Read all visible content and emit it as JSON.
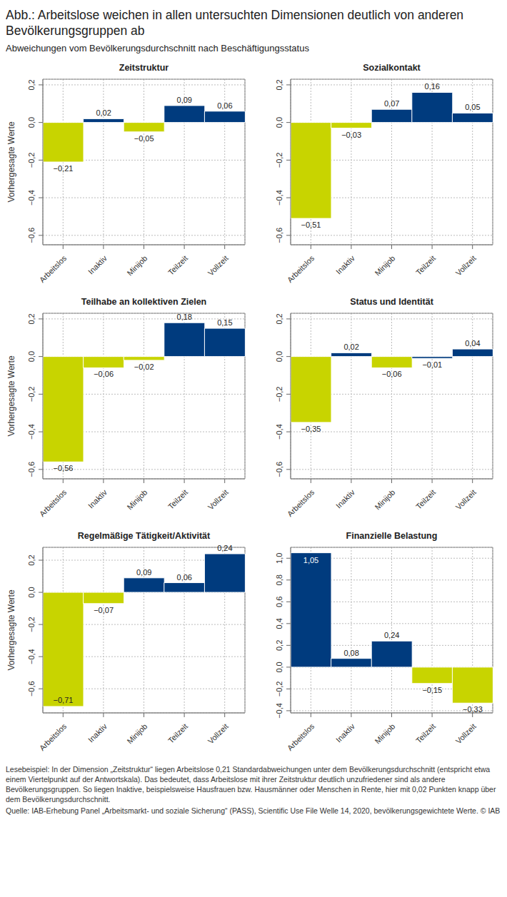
{
  "title": "Abb.: Arbeitslose weichen in allen untersuchten Dimensionen deutlich von anderen Bevölkerungsgruppen ab",
  "subtitle": "Abweichungen vom Bevölkerungsdurchschnitt nach Beschäftigungsstatus",
  "footnote": "Lesebeispiel: In der Dimension „Zeitstruktur“ liegen Arbeitslose 0,21 Standardabweichungen unter dem Bevölkerungsdurchschnitt (entspricht etwa einem Viertelpunkt auf der Antwortskala). Das bedeutet, dass Arbeitslose mit ihrer Zeitstruktur deutlich unzufriedener sind als andere Bevölkerungsgruppen. So liegen Inaktive, beispielsweise Hausfrauen bzw. Hausmänner oder Menschen in Rente, hier mit 0,02 Punkten knapp über dem Bevölkerungsdurchschnitt.",
  "source": "Quelle: IAB-Erhebung Panel „Arbeitsmarkt- und soziale Sicherung“ (PASS), Scientific Use File Welle 14, 2020, bevölkerungsgewichtete Werte. © IAB",
  "chart_data": [
    {
      "type": "bar",
      "title": "Zeitstruktur",
      "ylabel": "Vorhergesagte Werte",
      "categories": [
        "Arbeitslos",
        "Inaktiv",
        "Minijob",
        "Teilzeit",
        "Vollzeit"
      ],
      "values": [
        -0.21,
        0.02,
        -0.05,
        0.09,
        0.06
      ],
      "value_labels": [
        "−0,21",
        "0,02",
        "−0,05",
        "0,09",
        "0,06"
      ],
      "colors": [
        "#c8d400",
        "#003b7e",
        "#c8d400",
        "#003b7e",
        "#003b7e"
      ],
      "ylim": [
        -0.65,
        0.23
      ],
      "yticks": [
        {
          "value": -0.6,
          "label": "−0,6"
        },
        {
          "value": -0.4,
          "label": "−0,4"
        },
        {
          "value": -0.2,
          "label": "−0,2"
        },
        {
          "value": 0,
          "label": "0,0"
        },
        {
          "value": 0.2,
          "label": "0,2"
        }
      ],
      "grid": true,
      "data_labels": true
    },
    {
      "type": "bar",
      "title": "Sozialkontakt",
      "categories": [
        "Arbeitslos",
        "Inaktiv",
        "Minijob",
        "Teilzeit",
        "Vollzeit"
      ],
      "values": [
        -0.51,
        -0.03,
        0.07,
        0.16,
        0.05
      ],
      "value_labels": [
        "−0,51",
        "−0,03",
        "0,07",
        "0,16",
        "0,05"
      ],
      "colors": [
        "#c8d400",
        "#c8d400",
        "#003b7e",
        "#003b7e",
        "#003b7e"
      ],
      "ylim": [
        -0.65,
        0.23
      ],
      "yticks": [
        {
          "value": -0.6,
          "label": "−0,6"
        },
        {
          "value": -0.4,
          "label": "−0,4"
        },
        {
          "value": -0.2,
          "label": "−0,2"
        },
        {
          "value": 0,
          "label": "0,0"
        },
        {
          "value": 0.2,
          "label": "0,2"
        }
      ],
      "grid": true,
      "data_labels": true
    },
    {
      "type": "bar",
      "title": "Teilhabe an kollektiven Zielen",
      "ylabel": "Vorhergesagte Werte",
      "categories": [
        "Arbeitslos",
        "Inaktiv",
        "Minijob",
        "Teilzeit",
        "Vollzeit"
      ],
      "values": [
        -0.56,
        -0.06,
        -0.02,
        0.18,
        0.15
      ],
      "value_labels": [
        "−0,56",
        "−0,06",
        "−0,02",
        "0,18",
        "0,15"
      ],
      "colors": [
        "#c8d400",
        "#c8d400",
        "#c8d400",
        "#003b7e",
        "#003b7e"
      ],
      "ylim": [
        -0.65,
        0.23
      ],
      "yticks": [
        {
          "value": -0.6,
          "label": "−0,6"
        },
        {
          "value": -0.4,
          "label": "−0,4"
        },
        {
          "value": -0.2,
          "label": "−0,2"
        },
        {
          "value": 0,
          "label": "0,0"
        },
        {
          "value": 0.2,
          "label": "0,2"
        }
      ],
      "grid": true,
      "data_labels": true
    },
    {
      "type": "bar",
      "title": "Status und Identität",
      "categories": [
        "Arbeitslos",
        "Inaktiv",
        "Minijob",
        "Teilzeit",
        "Vollzeit"
      ],
      "values": [
        -0.35,
        0.02,
        -0.06,
        -0.01,
        0.04
      ],
      "value_labels": [
        "−0,35",
        "0,02",
        "−0,06",
        "−0,01",
        "0,04"
      ],
      "colors": [
        "#c8d400",
        "#003b7e",
        "#c8d400",
        "#003b7e",
        "#003b7e"
      ],
      "ylim": [
        -0.65,
        0.23
      ],
      "yticks": [
        {
          "value": -0.6,
          "label": "−0,6"
        },
        {
          "value": -0.4,
          "label": "−0,4"
        },
        {
          "value": -0.2,
          "label": "−0,2"
        },
        {
          "value": 0,
          "label": "0,0"
        },
        {
          "value": 0.2,
          "label": "0,2"
        }
      ],
      "grid": true,
      "data_labels": true
    },
    {
      "type": "bar",
      "title": "Regelmäßige Tätigkeit/Aktivität",
      "ylabel": "Vorhergesagte Werte",
      "categories": [
        "Arbeitslos",
        "Inaktiv",
        "Minijob",
        "Teilzeit",
        "Vollzeit"
      ],
      "values": [
        -0.71,
        -0.07,
        0.09,
        0.06,
        0.24
      ],
      "value_labels": [
        "−0,71",
        "−0,07",
        "0,09",
        "0,06",
        "0,24"
      ],
      "colors": [
        "#c8d400",
        "#c8d400",
        "#003b7e",
        "#003b7e",
        "#003b7e"
      ],
      "ylim": [
        -0.75,
        0.28
      ],
      "yticks": [
        {
          "value": -0.6,
          "label": "−0,6"
        },
        {
          "value": -0.4,
          "label": "−0,4"
        },
        {
          "value": -0.2,
          "label": "−0,2"
        },
        {
          "value": 0,
          "label": "0,0"
        },
        {
          "value": 0.2,
          "label": "0,2"
        }
      ],
      "grid": true,
      "data_labels": true
    },
    {
      "type": "bar",
      "title": "Finanzielle Belastung",
      "categories": [
        "Arbeitslos",
        "Inaktiv",
        "Minijob",
        "Teilzeit",
        "Vollzeit"
      ],
      "values": [
        1.05,
        0.08,
        0.24,
        -0.15,
        -0.33
      ],
      "value_labels": [
        "1,05",
        "0,08",
        "0,24",
        "−0,15",
        "−0,33"
      ],
      "colors": [
        "#003b7e",
        "#003b7e",
        "#003b7e",
        "#c8d400",
        "#c8d400"
      ],
      "ylim": [
        -0.42,
        1.1
      ],
      "yticks": [
        {
          "value": -0.4,
          "label": "−0,4"
        },
        {
          "value": -0.2,
          "label": "−0,2"
        },
        {
          "value": 0,
          "label": "0,0"
        },
        {
          "value": 0.2,
          "label": "0,2"
        },
        {
          "value": 0.4,
          "label": "0,4"
        },
        {
          "value": 0.6,
          "label": "0,6"
        },
        {
          "value": 0.8,
          "label": "0,8"
        },
        {
          "value": 1,
          "label": "1,0"
        }
      ],
      "grid": true,
      "data_labels": true
    }
  ]
}
